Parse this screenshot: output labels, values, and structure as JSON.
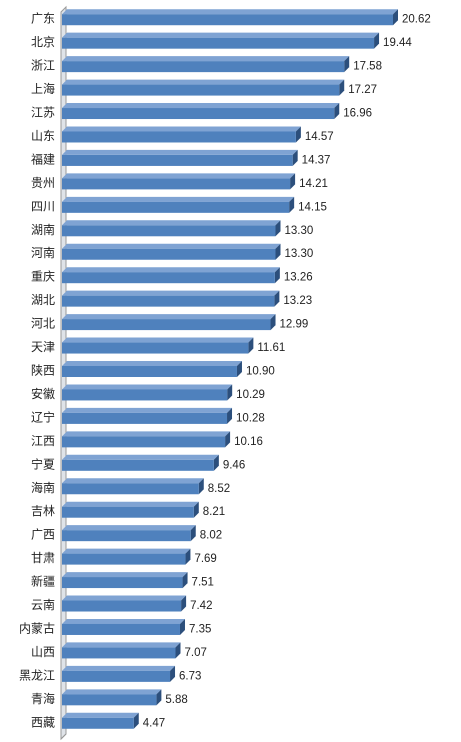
{
  "chart_data": {
    "type": "bar",
    "orientation": "horizontal",
    "categories": [
      "广东",
      "北京",
      "浙江",
      "上海",
      "江苏",
      "山东",
      "福建",
      "贵州",
      "四川",
      "湖南",
      "河南",
      "重庆",
      "湖北",
      "河北",
      "天津",
      "陕西",
      "安徽",
      "辽宁",
      "江西",
      "宁夏",
      "海南",
      "吉林",
      "广西",
      "甘肃",
      "新疆",
      "云南",
      "内蒙古",
      "山西",
      "黑龙江",
      "青海",
      "西藏"
    ],
    "values": [
      20.62,
      19.44,
      17.58,
      17.27,
      16.96,
      14.57,
      14.37,
      14.21,
      14.15,
      13.3,
      13.3,
      13.26,
      13.23,
      12.99,
      11.61,
      10.9,
      10.29,
      10.28,
      10.16,
      9.46,
      8.52,
      8.21,
      8.02,
      7.69,
      7.51,
      7.42,
      7.35,
      7.07,
      6.73,
      5.88,
      4.47
    ],
    "value_labels": [
      "20.62",
      "19.44",
      "17.58",
      "17.27",
      "16.96",
      "14.57",
      "14.37",
      "14.21",
      "14.15",
      "13.30",
      "13.30",
      "13.26",
      "13.23",
      "12.99",
      "11.61",
      "10.90",
      "10.29",
      "10.28",
      "10.16",
      "9.46",
      "8.52",
      "8.21",
      "8.02",
      "7.69",
      "7.51",
      "7.42",
      "7.35",
      "7.07",
      "6.73",
      "5.88",
      "4.47"
    ],
    "title": "",
    "xlabel": "",
    "ylabel": "",
    "xlim": [
      0,
      22
    ],
    "grid": false,
    "legend": "none",
    "bar_style": "3d",
    "colors": {
      "bar_front": "#4f81bd",
      "bar_top": "#7fa3d3",
      "bar_side": "#2c4f7c",
      "axis_wall": "#dfe3e8",
      "axis_line": "#9a9a9a"
    }
  }
}
